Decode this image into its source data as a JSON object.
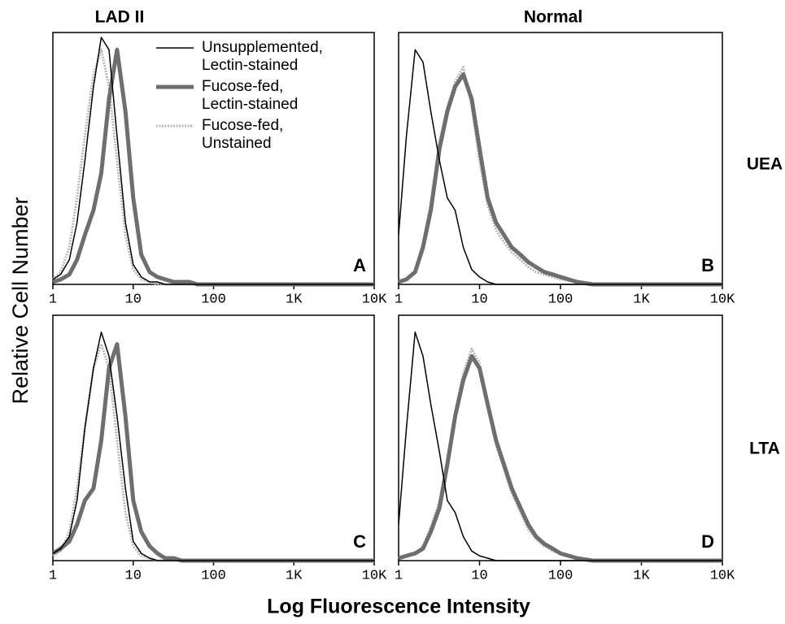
{
  "figure": {
    "column_labels": [
      "LAD II",
      "Normal"
    ],
    "row_labels": [
      "UEA",
      "LTA"
    ],
    "ylabel": "Relative Cell Number",
    "xlabel": "Log Fluorescence Intensity"
  },
  "chart_data": [
    {
      "type": "line",
      "panel_label": "A",
      "xscale": "log",
      "xlim": [
        1,
        10000
      ],
      "ylim": [
        0,
        100
      ],
      "xticks": [
        1,
        10,
        100,
        {
          "value": 1000,
          "label": "1K"
        },
        {
          "value": 10000,
          "label": "10K"
        }
      ],
      "x": [
        1,
        1.25,
        1.6,
        2,
        2.5,
        3.2,
        4,
        5,
        6.3,
        8,
        10,
        12.6,
        16,
        20,
        25,
        32,
        40,
        50,
        63,
        80,
        100,
        160,
        250,
        400,
        630,
        1000,
        2500,
        10000
      ],
      "series": [
        {
          "name": "Unsupplemented, Lectin-stained",
          "color": "#000000",
          "values": [
            2,
            4,
            10,
            25,
            50,
            80,
            100,
            95,
            60,
            25,
            8,
            3,
            1,
            1,
            0,
            0,
            0,
            0,
            0,
            0,
            0,
            0,
            0,
            0,
            0,
            0,
            0,
            0
          ]
        },
        {
          "name": "Fucose-fed, Lectin-stained",
          "color": "#6e6e6e",
          "values": [
            1,
            2,
            4,
            10,
            20,
            30,
            45,
            75,
            95,
            70,
            35,
            12,
            5,
            3,
            2,
            1,
            1,
            1,
            0,
            0,
            0,
            0,
            0,
            0,
            0,
            0,
            0,
            0
          ]
        },
        {
          "name": "Fucose-fed, Unstained",
          "color": "#b8b8b8",
          "values": [
            2,
            5,
            15,
            35,
            60,
            85,
            95,
            80,
            50,
            20,
            6,
            2,
            1,
            0,
            0,
            0,
            0,
            0,
            0,
            0,
            0,
            0,
            0,
            0,
            0,
            0,
            0,
            0
          ]
        }
      ]
    },
    {
      "type": "line",
      "panel_label": "B",
      "xscale": "log",
      "xlim": [
        1,
        10000
      ],
      "ylim": [
        0,
        100
      ],
      "xticks": [
        1,
        10,
        100,
        {
          "value": 1000,
          "label": "1K"
        },
        {
          "value": 10000,
          "label": "10K"
        }
      ],
      "x": [
        1,
        1.25,
        1.6,
        2,
        2.5,
        3.2,
        4,
        5,
        6.3,
        8,
        10,
        12.6,
        16,
        20,
        25,
        32,
        40,
        50,
        63,
        80,
        100,
        160,
        250,
        400,
        630,
        1000,
        2500,
        10000
      ],
      "series": [
        {
          "color": "#000000",
          "values": [
            20,
            60,
            95,
            90,
            70,
            50,
            35,
            30,
            15,
            6,
            3,
            1,
            0,
            0,
            0,
            0,
            0,
            0,
            0,
            0,
            0,
            0,
            0,
            0,
            0,
            0,
            0,
            0
          ]
        },
        {
          "color": "#6e6e6e",
          "values": [
            1,
            2,
            5,
            15,
            30,
            55,
            70,
            80,
            85,
            75,
            55,
            35,
            25,
            20,
            15,
            12,
            9,
            7,
            5,
            4,
            3,
            1,
            0,
            0,
            0,
            0,
            0,
            0
          ]
        },
        {
          "color": "#b8b8b8",
          "values": [
            1,
            2,
            5,
            17,
            33,
            58,
            72,
            82,
            88,
            72,
            50,
            32,
            22,
            17,
            13,
            10,
            7,
            5,
            4,
            3,
            2,
            1,
            0,
            0,
            0,
            0,
            0,
            0
          ]
        }
      ]
    },
    {
      "type": "line",
      "panel_label": "C",
      "xscale": "log",
      "xlim": [
        1,
        10000
      ],
      "ylim": [
        0,
        100
      ],
      "xticks": [
        1,
        10,
        100,
        {
          "value": 1000,
          "label": "1K"
        },
        {
          "value": 10000,
          "label": "10K"
        }
      ],
      "x": [
        1,
        1.25,
        1.6,
        2,
        2.5,
        3.2,
        4,
        5,
        6.3,
        8,
        10,
        12.6,
        16,
        20,
        25,
        32,
        40,
        50,
        63,
        80,
        100,
        160,
        250,
        400,
        630,
        1000,
        2500,
        10000
      ],
      "series": [
        {
          "color": "#000000",
          "values": [
            3,
            5,
            10,
            25,
            55,
            80,
            95,
            85,
            60,
            30,
            8,
            3,
            1,
            0,
            0,
            0,
            0,
            0,
            0,
            0,
            0,
            0,
            0,
            0,
            0,
            0,
            0,
            0
          ]
        },
        {
          "color": "#6e6e6e",
          "values": [
            3,
            5,
            8,
            15,
            25,
            30,
            50,
            80,
            90,
            60,
            25,
            12,
            6,
            3,
            1,
            1,
            0,
            0,
            0,
            0,
            0,
            0,
            0,
            0,
            0,
            0,
            0,
            0
          ]
        },
        {
          "color": "#b8b8b8",
          "values": [
            2,
            4,
            12,
            30,
            55,
            80,
            90,
            80,
            50,
            20,
            6,
            2,
            1,
            0,
            0,
            0,
            0,
            0,
            0,
            0,
            0,
            0,
            0,
            0,
            0,
            0,
            0,
            0
          ]
        }
      ]
    },
    {
      "type": "line",
      "panel_label": "D",
      "xscale": "log",
      "xlim": [
        1,
        10000
      ],
      "ylim": [
        0,
        100
      ],
      "xticks": [
        1,
        10,
        100,
        {
          "value": 1000,
          "label": "1K"
        },
        {
          "value": 10000,
          "label": "10K"
        }
      ],
      "x": [
        1,
        1.25,
        1.6,
        2,
        2.5,
        3.2,
        4,
        5,
        6.3,
        8,
        10,
        12.6,
        16,
        20,
        25,
        32,
        40,
        50,
        63,
        80,
        100,
        160,
        250,
        400,
        630,
        1000,
        2500,
        10000
      ],
      "series": [
        {
          "color": "#000000",
          "values": [
            15,
            55,
            95,
            85,
            65,
            45,
            25,
            20,
            10,
            4,
            2,
            1,
            0,
            0,
            0,
            0,
            0,
            0,
            0,
            0,
            0,
            0,
            0,
            0,
            0,
            0,
            0,
            0
          ]
        },
        {
          "color": "#6e6e6e",
          "values": [
            1,
            2,
            3,
            5,
            12,
            22,
            40,
            60,
            75,
            85,
            80,
            65,
            50,
            40,
            30,
            22,
            15,
            10,
            7,
            5,
            3,
            1,
            0,
            0,
            0,
            0,
            0,
            0
          ]
        },
        {
          "color": "#b8b8b8",
          "values": [
            1,
            2,
            3,
            6,
            14,
            25,
            42,
            62,
            78,
            88,
            82,
            65,
            48,
            38,
            28,
            20,
            13,
            9,
            6,
            4,
            3,
            1,
            0,
            0,
            0,
            0,
            0,
            0
          ]
        }
      ]
    }
  ]
}
